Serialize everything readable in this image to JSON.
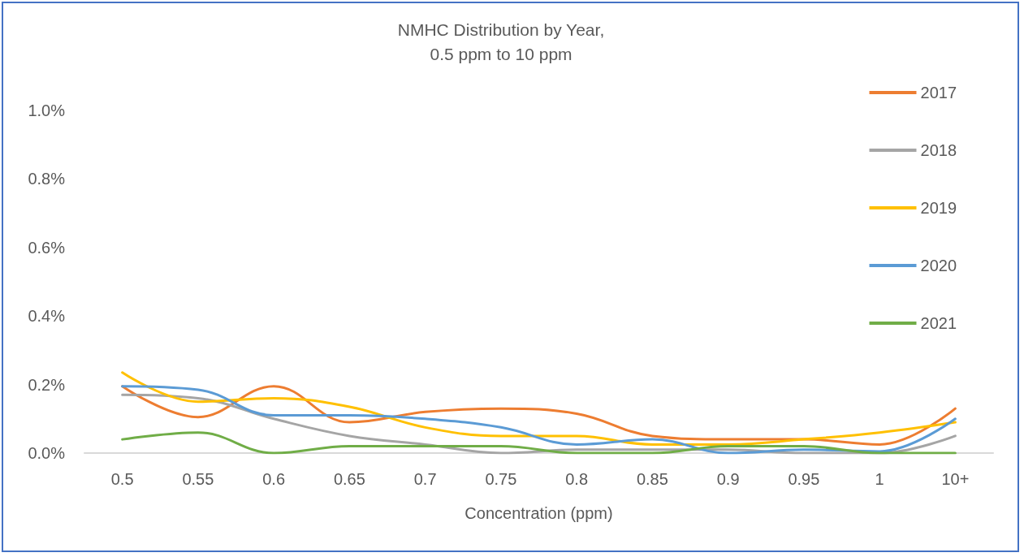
{
  "chart_data": {
    "type": "line",
    "title": "NMHC Distribution by Year,\n0.5 ppm to 10 ppm",
    "xlabel": "Concentration (ppm)",
    "categories": [
      "0.5",
      "0.55",
      "0.6",
      "0.65",
      "0.7",
      "0.75",
      "0.8",
      "0.85",
      "0.9",
      "0.95",
      "1",
      "10+"
    ],
    "series": [
      {
        "name": "2017",
        "color": "#ed7d31",
        "values": [
          0.195,
          0.105,
          0.195,
          0.09,
          0.12,
          0.13,
          0.115,
          0.05,
          0.04,
          0.04,
          0.025,
          0.13
        ]
      },
      {
        "name": "2018",
        "color": "#a5a5a5",
        "values": [
          0.17,
          0.16,
          0.1,
          0.05,
          0.025,
          0.0,
          0.01,
          0.01,
          0.01,
          0.0,
          0.0,
          0.05
        ]
      },
      {
        "name": "2019",
        "color": "#ffc000",
        "values": [
          0.235,
          0.15,
          0.16,
          0.135,
          0.075,
          0.05,
          0.05,
          0.025,
          0.025,
          0.04,
          0.06,
          0.09
        ]
      },
      {
        "name": "2020",
        "color": "#5b9bd5",
        "values": [
          0.195,
          0.185,
          0.11,
          0.11,
          0.1,
          0.075,
          0.025,
          0.04,
          0.0,
          0.01,
          0.005,
          0.1
        ]
      },
      {
        "name": "2021",
        "color": "#70ad47",
        "values": [
          0.04,
          0.06,
          0.0,
          0.02,
          0.02,
          0.02,
          0.0,
          0.0,
          0.02,
          0.02,
          0.0,
          0.0
        ]
      }
    ],
    "ylim": [
      0,
      1.0
    ],
    "yticks": [
      {
        "value": 0,
        "label": "0.0%"
      },
      {
        "value": 0.2,
        "label": "0.2%"
      },
      {
        "value": 0.4,
        "label": "0.4%"
      },
      {
        "value": 0.6,
        "label": "0.6%"
      },
      {
        "value": 0.8,
        "label": "0.8%"
      },
      {
        "value": 1.0,
        "label": "1.0%"
      }
    ],
    "grid": false,
    "legend": "right",
    "marker": "none",
    "line_style": "solid"
  }
}
